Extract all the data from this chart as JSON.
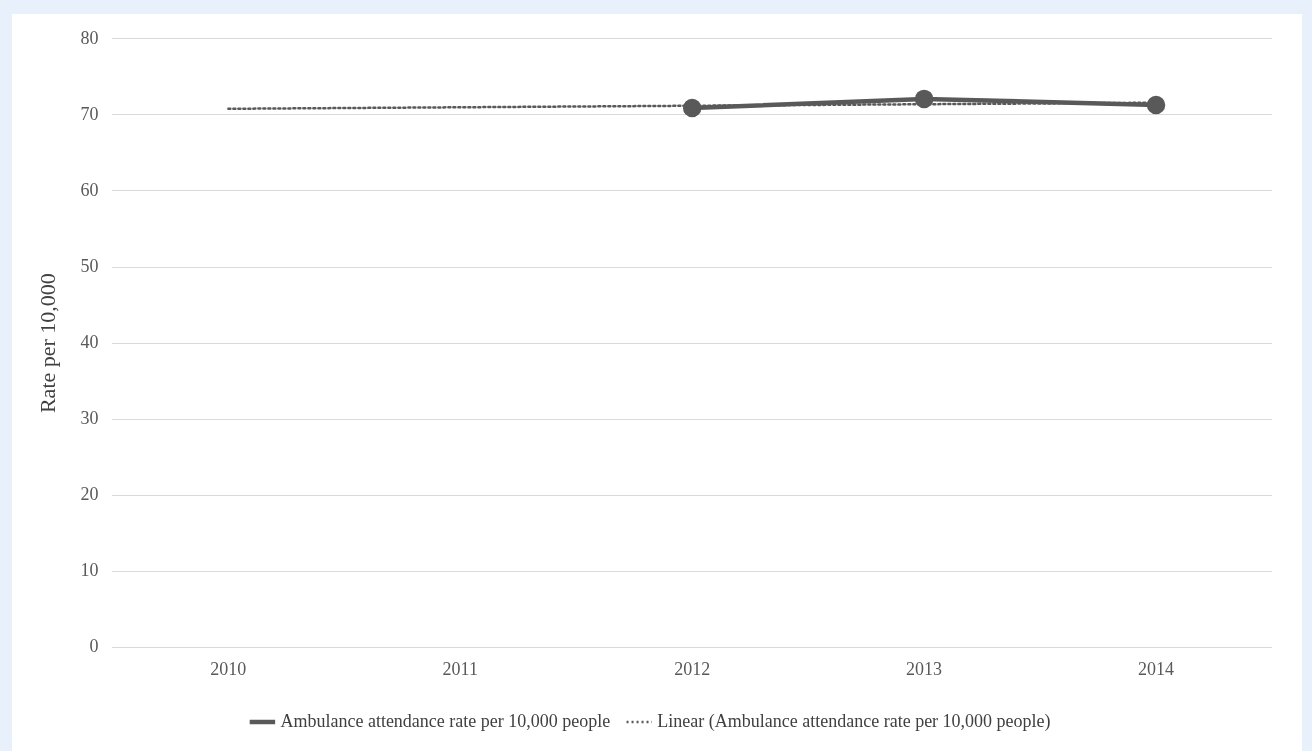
{
  "chart_data": {
    "type": "line",
    "categories": [
      "2010",
      "2011",
      "2012",
      "2013",
      "2014"
    ],
    "ylabel": "Rate per 10,000",
    "ylim": [
      0,
      80
    ],
    "yticks": [
      0,
      10,
      20,
      30,
      40,
      50,
      60,
      70,
      80
    ],
    "grid": "y",
    "legend": "bottom",
    "series": [
      {
        "name": "Ambulance attendance rate per 10,000 people",
        "color": "#595959",
        "values": [
          null,
          null,
          70.9,
          72.1,
          71.3
        ],
        "marker": "circle",
        "line_style": "solid"
      },
      {
        "name": "Linear (Ambulance attendance rate per 10,000 people)",
        "color": "#595959",
        "values": [
          70.8,
          71.0,
          71.2,
          71.4,
          71.6
        ],
        "marker": "none",
        "line_style": "dotted"
      }
    ]
  }
}
